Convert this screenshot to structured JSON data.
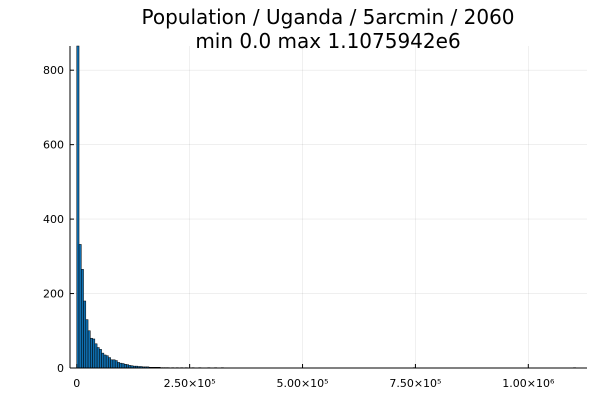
{
  "chart_data": {
    "type": "bar",
    "title": "Population / Uganda / 5arcmin / 2060",
    "subtitle": "min 0.0  max 1.1075942e6",
    "xlabel": "",
    "ylabel": "",
    "xlim": [
      -15000,
      1130000
    ],
    "ylim": [
      0,
      865
    ],
    "grid": true,
    "legend": "none",
    "bar_color": "#0f6fb0",
    "bin_width": 5000,
    "x_ticks": [
      {
        "value": 0,
        "label": "0"
      },
      {
        "value": 250000,
        "label": "2.50×10⁵"
      },
      {
        "value": 500000,
        "label": "5.00×10⁵"
      },
      {
        "value": 750000,
        "label": "7.50×10⁵"
      },
      {
        "value": 1000000,
        "label": "1.00×10⁶"
      }
    ],
    "y_ticks": [
      {
        "value": 0,
        "label": "0"
      },
      {
        "value": 200,
        "label": "200"
      },
      {
        "value": 400,
        "label": "400"
      },
      {
        "value": 600,
        "label": "600"
      },
      {
        "value": 800,
        "label": "800"
      }
    ],
    "bins_start": [
      0,
      5000,
      10000,
      15000,
      20000,
      25000,
      30000,
      35000,
      40000,
      45000,
      50000,
      55000,
      60000,
      65000,
      70000,
      75000,
      80000,
      85000,
      90000,
      95000,
      100000,
      105000,
      110000,
      115000,
      120000,
      125000,
      130000,
      135000,
      140000,
      145000,
      150000,
      155000,
      160000,
      165000,
      170000,
      175000,
      180000,
      185000,
      190000,
      195000,
      200000,
      210000,
      220000,
      230000,
      240000,
      255000,
      270000,
      290000,
      305000,
      320000,
      745000,
      1100000
    ],
    "counts": [
      865,
      332,
      265,
      180,
      130,
      100,
      80,
      78,
      65,
      55,
      50,
      40,
      35,
      33,
      28,
      22,
      22,
      20,
      15,
      13,
      12,
      10,
      9,
      7,
      6,
      5,
      5,
      4,
      4,
      3,
      3,
      3,
      2,
      2,
      2,
      2,
      2,
      1,
      1,
      1,
      1,
      1,
      1,
      1,
      1,
      1,
      1,
      1,
      1,
      1,
      1,
      1
    ]
  }
}
